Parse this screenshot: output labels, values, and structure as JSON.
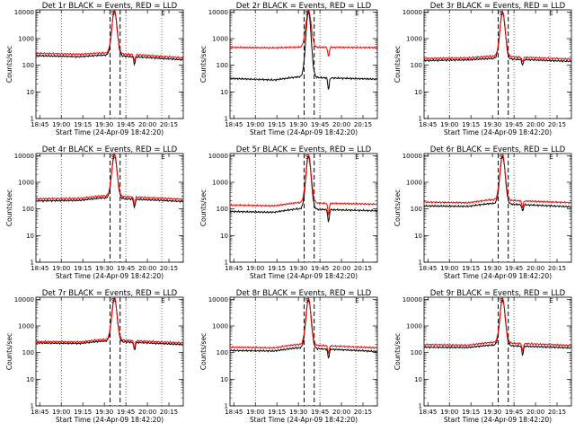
{
  "shared": {
    "xlabel": "Start Time (24-Apr-09 18:42:20)",
    "ylabel": "Counts/sec",
    "x_ticks": [
      "18:45",
      "19:00",
      "19:15",
      "19:30",
      "19:45",
      "20:00",
      "20:15"
    ],
    "y_ticks": [
      "1",
      "10",
      "100",
      "1000",
      "10000"
    ],
    "marker_S": "S",
    "marker_E": "E",
    "colors": {
      "events": "#000000",
      "lld": "#ff0000"
    }
  },
  "chart_data": [
    {
      "type": "line",
      "title": "Det 1r BLACK = Events, RED = LLD",
      "xlim": [
        "18:42:20",
        "20:25"
      ],
      "ylim": [
        1,
        12000
      ],
      "y_scale": "log",
      "dotted_vlines": [
        "19:00",
        "19:45",
        "20:10"
      ],
      "dashed_vlines": [
        "19:34",
        "19:41"
      ],
      "series": [
        {
          "name": "BLACK = Events",
          "base": [
            230,
            210,
            240,
            160
          ],
          "peak": 11000,
          "dip": 110
        },
        {
          "name": "RED = LLD",
          "base": [
            280,
            260,
            290,
            190
          ],
          "peak": 12000,
          "dip": 140
        }
      ]
    },
    {
      "type": "line",
      "title": "Det 2r BLACK = Events, RED = LLD",
      "xlim": [
        "18:42:20",
        "20:25"
      ],
      "ylim": [
        1,
        12000
      ],
      "y_scale": "log",
      "dotted_vlines": [
        "19:00",
        "19:45",
        "20:10"
      ],
      "dashed_vlines": [
        "19:34",
        "19:41"
      ],
      "series": [
        {
          "name": "BLACK = Events",
          "base": [
            32,
            28,
            36,
            30
          ],
          "peak": 11000,
          "dip": 12
        },
        {
          "name": "RED = LLD",
          "base": [
            470,
            450,
            480,
            460
          ],
          "peak": 12000,
          "dip": 200
        }
      ]
    },
    {
      "type": "line",
      "title": "Det 3r BLACK = Events, RED = LLD",
      "xlim": [
        "18:42:20",
        "20:25"
      ],
      "ylim": [
        1,
        12000
      ],
      "y_scale": "log",
      "dotted_vlines": [
        "19:00",
        "19:45",
        "20:10"
      ],
      "dashed_vlines": [
        "19:34",
        "19:41"
      ],
      "series": [
        {
          "name": "BLACK = Events",
          "base": [
            150,
            160,
            180,
            140
          ],
          "peak": 10000,
          "dip": 100
        },
        {
          "name": "RED = LLD",
          "base": [
            180,
            190,
            220,
            170
          ],
          "peak": 11000,
          "dip": 130
        }
      ]
    },
    {
      "type": "line",
      "title": "Det 4r BLACK = Events, RED = LLD",
      "xlim": [
        "18:42:20",
        "20:25"
      ],
      "ylim": [
        1,
        12000
      ],
      "y_scale": "log",
      "dotted_vlines": [
        "19:00",
        "19:45",
        "20:10"
      ],
      "dashed_vlines": [
        "19:34",
        "19:41"
      ],
      "series": [
        {
          "name": "BLACK = Events",
          "base": [
            200,
            210,
            260,
            190
          ],
          "peak": 11000,
          "dip": 110
        },
        {
          "name": "RED = LLD",
          "base": [
            240,
            250,
            310,
            230
          ],
          "peak": 12000,
          "dip": 140
        }
      ]
    },
    {
      "type": "line",
      "title": "Det 5r BLACK = Events, RED = LLD",
      "xlim": [
        "18:42:20",
        "20:25"
      ],
      "ylim": [
        1,
        12000
      ],
      "y_scale": "log",
      "dotted_vlines": [
        "19:00",
        "19:45",
        "20:10"
      ],
      "dashed_vlines": [
        "19:34",
        "19:41"
      ],
      "series": [
        {
          "name": "BLACK = Events",
          "base": [
            80,
            75,
            100,
            85
          ],
          "peak": 10000,
          "dip": 30
        },
        {
          "name": "RED = LLD",
          "base": [
            140,
            130,
            170,
            150
          ],
          "peak": 11000,
          "dip": 60
        }
      ]
    },
    {
      "type": "line",
      "title": "Det 6r BLACK = Events, RED = LLD",
      "xlim": [
        "18:42:20",
        "20:25"
      ],
      "ylim": [
        1,
        12000
      ],
      "y_scale": "log",
      "dotted_vlines": [
        "19:00",
        "19:45",
        "20:10"
      ],
      "dashed_vlines": [
        "19:34",
        "19:41"
      ],
      "series": [
        {
          "name": "BLACK = Events",
          "base": [
            130,
            125,
            160,
            120
          ],
          "peak": 10000,
          "dip": 80
        },
        {
          "name": "RED = LLD",
          "base": [
            180,
            170,
            220,
            170
          ],
          "peak": 11000,
          "dip": 110
        }
      ]
    },
    {
      "type": "line",
      "title": "Det 7r BLACK = Events, RED = LLD",
      "xlim": [
        "18:42:20",
        "20:25"
      ],
      "ylim": [
        1,
        12000
      ],
      "y_scale": "log",
      "dotted_vlines": [
        "19:00",
        "19:45",
        "20:10"
      ],
      "dashed_vlines": [
        "19:34",
        "19:41"
      ],
      "series": [
        {
          "name": "BLACK = Events",
          "base": [
            230,
            220,
            270,
            200
          ],
          "peak": 11000,
          "dip": 120
        },
        {
          "name": "RED = LLD",
          "base": [
            260,
            250,
            310,
            230
          ],
          "peak": 12000,
          "dip": 150
        }
      ]
    },
    {
      "type": "line",
      "title": "Det 8r BLACK = Events, RED = LLD",
      "xlim": [
        "18:42:20",
        "20:25"
      ],
      "ylim": [
        1,
        12000
      ],
      "y_scale": "log",
      "dotted_vlines": [
        "19:00",
        "19:45",
        "20:10"
      ],
      "dashed_vlines": [
        "19:34",
        "19:41"
      ],
      "series": [
        {
          "name": "BLACK = Events",
          "base": [
            120,
            115,
            150,
            110
          ],
          "peak": 10000,
          "dip": 60
        },
        {
          "name": "RED = LLD",
          "base": [
            160,
            150,
            200,
            150
          ],
          "peak": 11000,
          "dip": 90
        }
      ]
    },
    {
      "type": "line",
      "title": "Det 9r BLACK = Events, RED = LLD",
      "xlim": [
        "18:42:20",
        "20:25"
      ],
      "ylim": [
        1,
        12000
      ],
      "y_scale": "log",
      "dotted_vlines": [
        "19:00",
        "19:45",
        "20:10"
      ],
      "dashed_vlines": [
        "19:34",
        "19:41"
      ],
      "series": [
        {
          "name": "BLACK = Events",
          "base": [
            160,
            155,
            190,
            150
          ],
          "peak": 10000,
          "dip": 80
        },
        {
          "name": "RED = LLD",
          "base": [
            200,
            190,
            240,
            185
          ],
          "peak": 11000,
          "dip": 110
        }
      ]
    }
  ]
}
